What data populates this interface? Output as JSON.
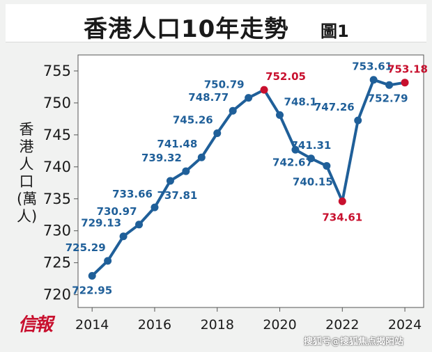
{
  "title": "香港人口10年走勢",
  "subtitle": "圖1",
  "ylabel": "香港人口(萬人)",
  "logo_text": "信報",
  "watermark": "搜狐号@搜狐焦点揭阳站",
  "colors": {
    "line": "#1f5f99",
    "highlight": "#c8102e",
    "frame": "#f1f2f1",
    "plot_bg": "#ffffff"
  },
  "chart_data": {
    "type": "line",
    "title": "香港人口10年走勢",
    "ylabel": "香港人口(萬人)",
    "xlabel": "",
    "grid": false,
    "xlim": [
      2013.55,
      2024.6
    ],
    "ylim": [
      718.0,
      757.5
    ],
    "x_ticks": [
      "2014",
      "2016",
      "2018",
      "2020",
      "2022",
      "2024"
    ],
    "y_ticks": [
      "720",
      "725",
      "730",
      "735",
      "740",
      "745",
      "750",
      "755"
    ],
    "series": [
      {
        "x": [
          2014.0,
          2014.5,
          2015.0,
          2015.5,
          2016.0,
          2016.5,
          2017.0,
          2017.5,
          2018.0,
          2018.5,
          2019.0,
          2019.5,
          2020.0,
          2020.5,
          2021.0,
          2021.5,
          2022.0,
          2022.5,
          2023.0,
          2023.5,
          2024.0
        ],
        "values": [
          722.95,
          725.29,
          729.13,
          730.97,
          733.66,
          737.81,
          739.32,
          741.48,
          745.26,
          748.77,
          750.79,
          752.05,
          748.1,
          742.67,
          741.31,
          740.15,
          734.61,
          747.26,
          753.61,
          752.79,
          753.18
        ],
        "labels": [
          "722.95",
          "725.29",
          "729.13",
          "730.97",
          "733.66",
          "737.81",
          "739.32",
          "741.48",
          "745.26",
          "748.77",
          "750.79",
          "752.05",
          "748.1",
          "742.67",
          "741.31",
          "740.15",
          "734.61",
          "747.26",
          "753.61",
          "752.79",
          "753.18"
        ],
        "highlight_indices": [
          11,
          16,
          20
        ]
      }
    ]
  }
}
